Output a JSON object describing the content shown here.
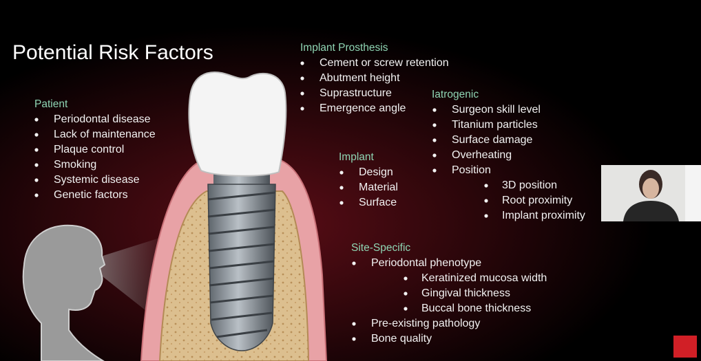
{
  "title": "Potential Risk Factors",
  "sections": [
    {
      "heading": "Patient",
      "items": [
        {
          "text": "Periodontal disease"
        },
        {
          "text": "Lack of maintenance"
        },
        {
          "text": "Plaque control"
        },
        {
          "text": "Smoking"
        },
        {
          "text": "Systemic disease"
        },
        {
          "text": "Genetic factors"
        }
      ]
    },
    {
      "heading": "Implant Prosthesis",
      "items": [
        {
          "text": "Cement or screw retention"
        },
        {
          "text": "Abutment height"
        },
        {
          "text": "Suprastructure"
        },
        {
          "text": "Emergence angle"
        }
      ]
    },
    {
      "heading": "Iatrogenic",
      "items": [
        {
          "text": "Surgeon skill level"
        },
        {
          "text": "Titanium particles"
        },
        {
          "text": "Surface damage"
        },
        {
          "text": "Overheating"
        },
        {
          "text": "Position",
          "subitems": [
            "3D position",
            "Root proximity",
            "Implant proximity"
          ]
        }
      ]
    },
    {
      "heading": "Implant",
      "items": [
        {
          "text": "Design"
        },
        {
          "text": "Material"
        },
        {
          "text": "Surface"
        }
      ]
    },
    {
      "heading": "Site-Specific",
      "items": [
        {
          "text": "Periodontal phenotype",
          "subitems": [
            "Keratinized mucosa width",
            "Gingival thickness",
            "Buccal bone thickness"
          ]
        },
        {
          "text": "Pre-existing pathology"
        },
        {
          "text": "Bone quality"
        }
      ]
    }
  ]
}
